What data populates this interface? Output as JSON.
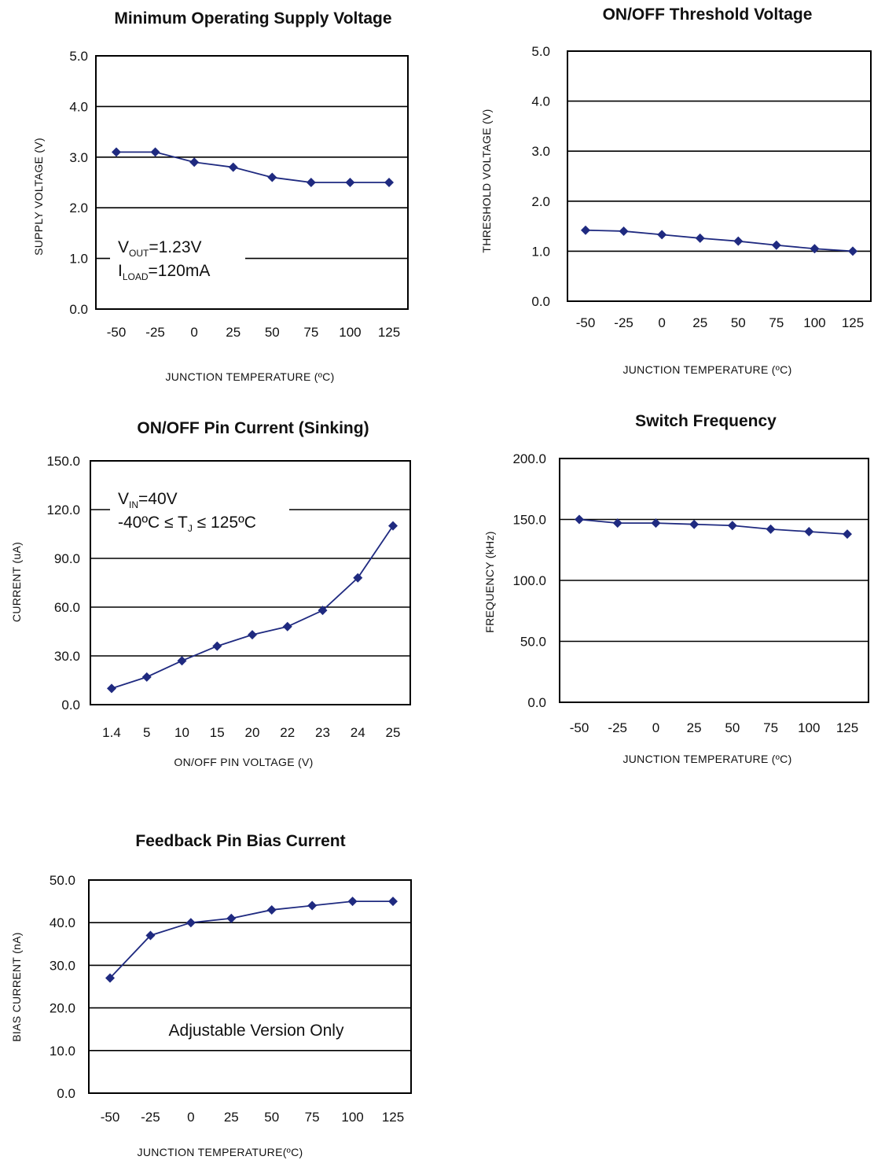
{
  "colors": {
    "series": "#1f2a80",
    "grid": "#000000",
    "text": "#111111"
  },
  "chart_data": [
    {
      "type": "line",
      "title": "Minimum Operating Supply Voltage",
      "xlabel": "JUNCTION TEMPERATURE (ºC)",
      "ylabel": "SUPPLY VOLTAGE (V)",
      "categories": [
        "-50",
        "-25",
        "0",
        "25",
        "50",
        "75",
        "100",
        "125"
      ],
      "ylim": [
        0,
        5
      ],
      "yticks": [
        "0.0",
        "1.0",
        "2.0",
        "3.0",
        "4.0",
        "5.0"
      ],
      "grid": true,
      "legend": "none",
      "series": [
        {
          "values": [
            3.1,
            3.1,
            2.9,
            2.8,
            2.6,
            2.5,
            2.5,
            2.5
          ]
        }
      ],
      "annotations": [
        {
          "main": "V",
          "sub": "OUT",
          "rest": "=1.23V"
        },
        {
          "main": "I",
          "sub": "LOAD",
          "rest": "=120mA"
        }
      ]
    },
    {
      "type": "line",
      "title": "ON/OFF Threshold Voltage",
      "xlabel": "JUNCTION TEMPERATURE (ºC)",
      "ylabel": "THRESHOLD VOLTAGE (V)",
      "categories": [
        "-50",
        "-25",
        "0",
        "25",
        "50",
        "75",
        "100",
        "125"
      ],
      "ylim": [
        0,
        5
      ],
      "yticks": [
        "0.0",
        "1.0",
        "2.0",
        "3.0",
        "4.0",
        "5.0"
      ],
      "grid": true,
      "legend": "none",
      "series": [
        {
          "values": [
            1.42,
            1.4,
            1.33,
            1.26,
            1.2,
            1.12,
            1.05,
            1.0
          ]
        }
      ]
    },
    {
      "type": "line",
      "title": "ON/OFF Pin Current (Sinking)",
      "xlabel": "ON/OFF PIN VOLTAGE (V)",
      "ylabel": "CURRENT (uA)",
      "categories": [
        "1.4",
        "5",
        "10",
        "15",
        "20",
        "22",
        "23",
        "24",
        "25"
      ],
      "ylim": [
        0,
        150
      ],
      "yticks": [
        "0.0",
        "30.0",
        "60.0",
        "90.0",
        "120.0",
        "150.0"
      ],
      "grid": true,
      "legend": "none",
      "series": [
        {
          "values": [
            10,
            17,
            27,
            36,
            43,
            48,
            58,
            78,
            110
          ]
        }
      ],
      "annotations": [
        {
          "main": "V",
          "sub": "IN",
          "rest": "=40V"
        },
        {
          "main": "-40ºC ≤ T",
          "sub": "J",
          "rest": " ≤ 125ºC"
        }
      ]
    },
    {
      "type": "line",
      "title": "Switch Frequency",
      "xlabel": "JUNCTION TEMPERATURE (ºC)",
      "ylabel": "FREQUENCY (kHz)",
      "categories": [
        "-50",
        "-25",
        "0",
        "25",
        "50",
        "75",
        "100",
        "125"
      ],
      "ylim": [
        0,
        200
      ],
      "yticks": [
        "0.0",
        "50.0",
        "100.0",
        "150.0",
        "200.0"
      ],
      "grid": true,
      "legend": "none",
      "series": [
        {
          "values": [
            150,
            147,
            147,
            146,
            145,
            142,
            140,
            138
          ]
        }
      ]
    },
    {
      "type": "line",
      "title": "Feedback Pin Bias Current",
      "xlabel": "JUNCTION TEMPERATURE(ºC)",
      "ylabel": "BIAS CURRENT (nA)",
      "categories": [
        "-50",
        "-25",
        "0",
        "25",
        "50",
        "75",
        "100",
        "125"
      ],
      "ylim": [
        0,
        50
      ],
      "yticks": [
        "0.0",
        "10.0",
        "20.0",
        "30.0",
        "40.0",
        "50.0"
      ],
      "grid": true,
      "legend": "none",
      "series": [
        {
          "values": [
            27,
            37,
            40,
            41,
            43,
            44,
            45,
            45
          ]
        }
      ],
      "annotations": [
        {
          "main": "Adjustable Version Only",
          "sub": "",
          "rest": ""
        }
      ]
    }
  ]
}
